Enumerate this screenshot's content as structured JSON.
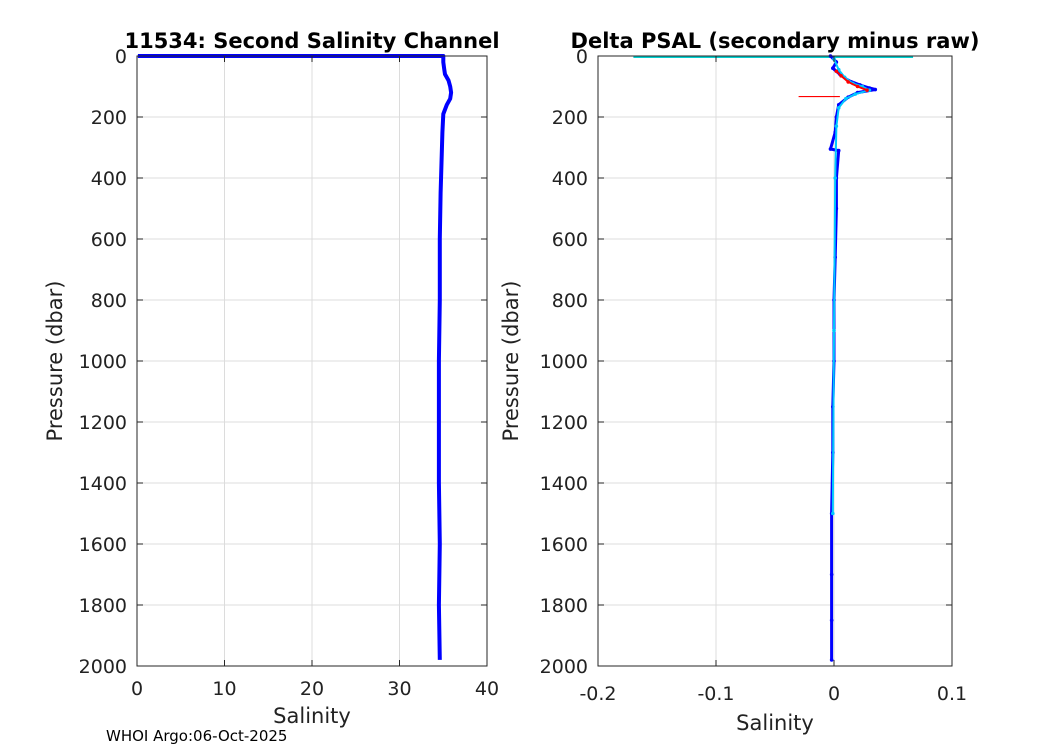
{
  "footer": "WHOI Argo:06-Oct-2025",
  "chart_data": [
    {
      "type": "line",
      "title": "11534: Second Salinity Channel",
      "xlabel": "Salinity",
      "ylabel": "Pressure (dbar)",
      "xlim": [
        0,
        40
      ],
      "ylim": [
        0,
        2000
      ],
      "y_reversed": true,
      "grid": true,
      "xticks": [
        0,
        10,
        20,
        30,
        40
      ],
      "xtick_labels": [
        "0",
        "10",
        "20",
        "30",
        "40"
      ],
      "yticks": [
        0,
        200,
        400,
        600,
        800,
        1000,
        1200,
        1400,
        1600,
        1800,
        2000
      ],
      "ytick_labels": [
        "0",
        "200",
        "400",
        "600",
        "800",
        "1000",
        "1200",
        "1400",
        "1600",
        "1800",
        "2000"
      ],
      "series": [
        {
          "color": "#0000ff",
          "x": [
            0.1,
            35.0,
            35.0,
            35.1,
            35.2,
            35.6,
            35.8,
            35.9,
            35.8,
            35.4,
            35.0,
            34.9,
            34.8,
            34.7,
            34.6,
            34.6,
            34.5,
            34.5,
            34.5,
            34.6,
            34.5,
            34.6
          ],
          "y": [
            0,
            0,
            20,
            40,
            60,
            80,
            100,
            120,
            140,
            160,
            190,
            250,
            350,
            450,
            600,
            800,
            1000,
            1200,
            1400,
            1600,
            1800,
            1980
          ]
        }
      ]
    },
    {
      "type": "scatter",
      "title": "Delta PSAL (secondary minus raw)",
      "xlabel": "Salinity",
      "ylabel": "Pressure (dbar)",
      "xlim": [
        -0.2,
        0.1
      ],
      "ylim": [
        0,
        2000
      ],
      "y_reversed": true,
      "grid": true,
      "xticks": [
        -0.2,
        -0.1,
        0,
        0.1
      ],
      "xtick_labels": [
        "-0.2",
        "-0.1",
        "0",
        "0.1"
      ],
      "yticks": [
        0,
        200,
        400,
        600,
        800,
        1000,
        1200,
        1400,
        1600,
        1800,
        2000
      ],
      "ytick_labels": [
        "0",
        "200",
        "400",
        "600",
        "800",
        "1000",
        "1200",
        "1400",
        "1600",
        "1800",
        "2000"
      ],
      "surface_line": {
        "color": "#00d0d0",
        "x": [
          -0.17,
          0.067
        ],
        "y": 0
      },
      "spike": {
        "color": "#ff0000",
        "x": [
          -0.03,
          0.005
        ],
        "y": 133
      },
      "series": [
        {
          "color": "#0000ff",
          "x": [
            -0.003,
            0.002,
            -0.001,
            0.005,
            0.012,
            0.022,
            0.03,
            0.035,
            0.02,
            0.012,
            0.004,
            0.002,
            0.001,
            -0.003,
            0.004,
            0.002,
            0.002,
            0.001,
            0.0,
            0.0,
            -0.001,
            -0.001,
            -0.002,
            -0.002,
            -0.002,
            -0.002
          ],
          "y": [
            0,
            20,
            40,
            60,
            80,
            95,
            105,
            110,
            120,
            135,
            160,
            200,
            250,
            305,
            310,
            400,
            500,
            660,
            800,
            1000,
            1150,
            1300,
            1500,
            1700,
            1850,
            1980
          ]
        },
        {
          "color": "#00c8ff",
          "x": [
            0.0,
            0.004,
            0.009,
            0.016,
            0.024,
            0.03,
            0.018,
            0.01,
            0.004,
            0.002,
            0.001,
            0.0,
            -0.001
          ],
          "y": [
            10,
            45,
            70,
            90,
            100,
            112,
            125,
            140,
            170,
            230,
            400,
            900,
            1500
          ]
        },
        {
          "color": "#ff0000",
          "x": [
            0.002,
            0.006,
            0.012,
            0.02,
            0.028
          ],
          "y": [
            50,
            65,
            85,
            100,
            112
          ]
        }
      ]
    }
  ]
}
